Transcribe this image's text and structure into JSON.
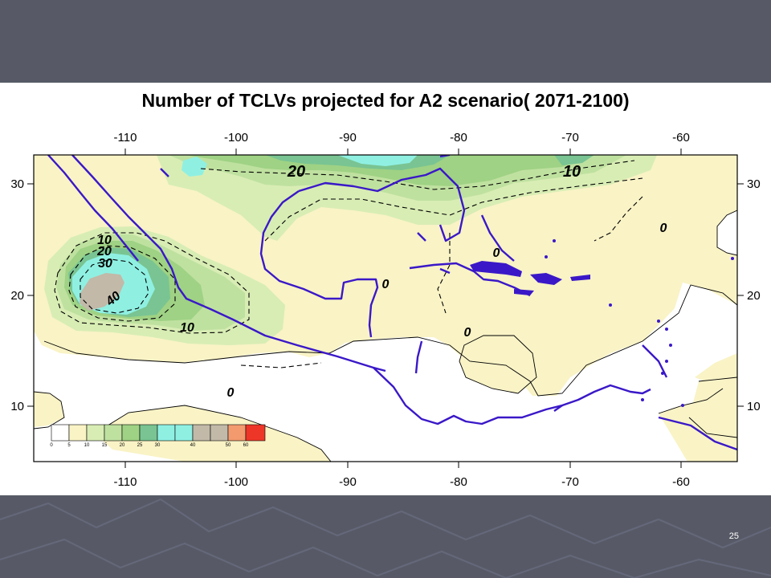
{
  "slide": {
    "title": "Number of TCLVs projected for A2 scenario( 2071-2100)",
    "slide_number": "25",
    "background_color": "#575a66"
  },
  "map": {
    "longitude_ticks": [
      "-110",
      "-100",
      "-90",
      "-80",
      "-70",
      "-60"
    ],
    "latitude_ticks": [
      "30",
      "20",
      "10"
    ],
    "contour_labels": [
      "20",
      "10",
      "10",
      "20",
      "30",
      "40",
      "10",
      "0",
      "0",
      "0",
      "0",
      "0"
    ],
    "coastline_color": "#3a18c8",
    "colorbar": {
      "labels": [
        "0",
        "5",
        "10",
        "15",
        "20",
        "25",
        "30",
        "40",
        "50",
        "60"
      ],
      "colors": [
        "#ffffff",
        "#f9f3c6",
        "#d8edb4",
        "#bfe1a0",
        "#9fd284",
        "#79c492",
        "#8ff0e2",
        "#c2b9a8",
        "#f39a6e",
        "#ee3628"
      ]
    }
  }
}
